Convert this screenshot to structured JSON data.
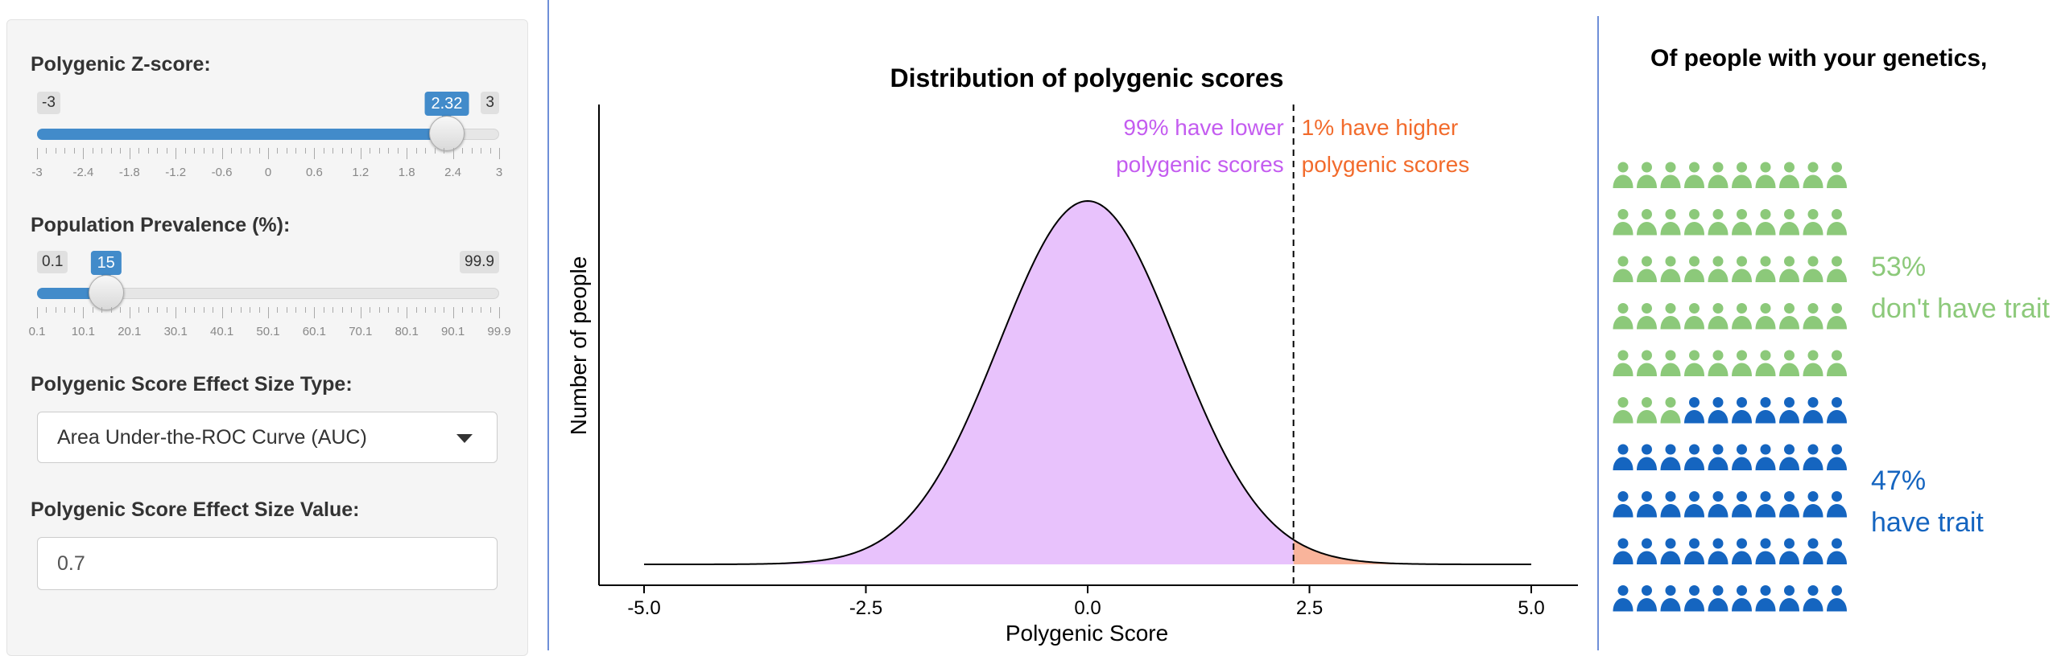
{
  "sidebar": {
    "zscore": {
      "label": "Polygenic Z-score:",
      "min": "-3",
      "max": "3",
      "value": "2.32",
      "min_num": -3,
      "max_num": 3,
      "value_num": 2.32,
      "ticks": [
        "-3",
        "-2.4",
        "-1.8",
        "-1.2",
        "-0.6",
        "0",
        "0.6",
        "1.2",
        "1.8",
        "2.4",
        "3"
      ]
    },
    "prevalence": {
      "label": "Population Prevalence (%):",
      "min": "0.1",
      "max": "99.9",
      "value": "15",
      "min_num": 0.1,
      "max_num": 99.9,
      "value_num": 15,
      "ticks": [
        "0.1",
        "10.1",
        "20.1",
        "30.1",
        "40.1",
        "50.1",
        "60.1",
        "70.1",
        "80.1",
        "90.1",
        "99.9"
      ]
    },
    "effect_type": {
      "label": "Polygenic Score Effect Size Type:",
      "selected": "Area Under-the-ROC Curve (AUC)"
    },
    "effect_value": {
      "label": "Polygenic Score Effect Size Value:",
      "value": "0.7"
    }
  },
  "chart_data": {
    "type": "area",
    "title": "Distribution of polygenic scores",
    "xlabel": "Polygenic Score",
    "ylabel": "Number of people",
    "xlim": [
      -5.0,
      5.0
    ],
    "xticks": [
      "-5.0",
      "-2.5",
      "0.0",
      "2.5",
      "5.0"
    ],
    "distribution": "standard-normal",
    "cutoff": 2.32,
    "series": [
      {
        "name": "lower",
        "range": [
          -5.0,
          2.32
        ],
        "color": "#e8c2fc"
      },
      {
        "name": "higher",
        "range": [
          2.32,
          5.0
        ],
        "color": "#f9b49b"
      }
    ],
    "annotations": {
      "lower_line1": "99% have lower",
      "lower_line2": "polygenic scores",
      "higher_line1": "1% have higher",
      "higher_line2": "polygenic scores"
    },
    "grid": false,
    "legend": "none"
  },
  "pictogram": {
    "title": "Of people with your genetics,",
    "total": 100,
    "no_trait_count": 53,
    "trait_count": 47,
    "no_trait_pct": "53%",
    "no_trait_label": "don't have trait",
    "trait_pct": "47%",
    "trait_label": "have trait"
  },
  "colors": {
    "accent": "#428bca",
    "lower_text": "#c45cf0",
    "higher_text": "#f26b2c",
    "no_trait": "#8cc97a",
    "trait": "#1565c0"
  }
}
